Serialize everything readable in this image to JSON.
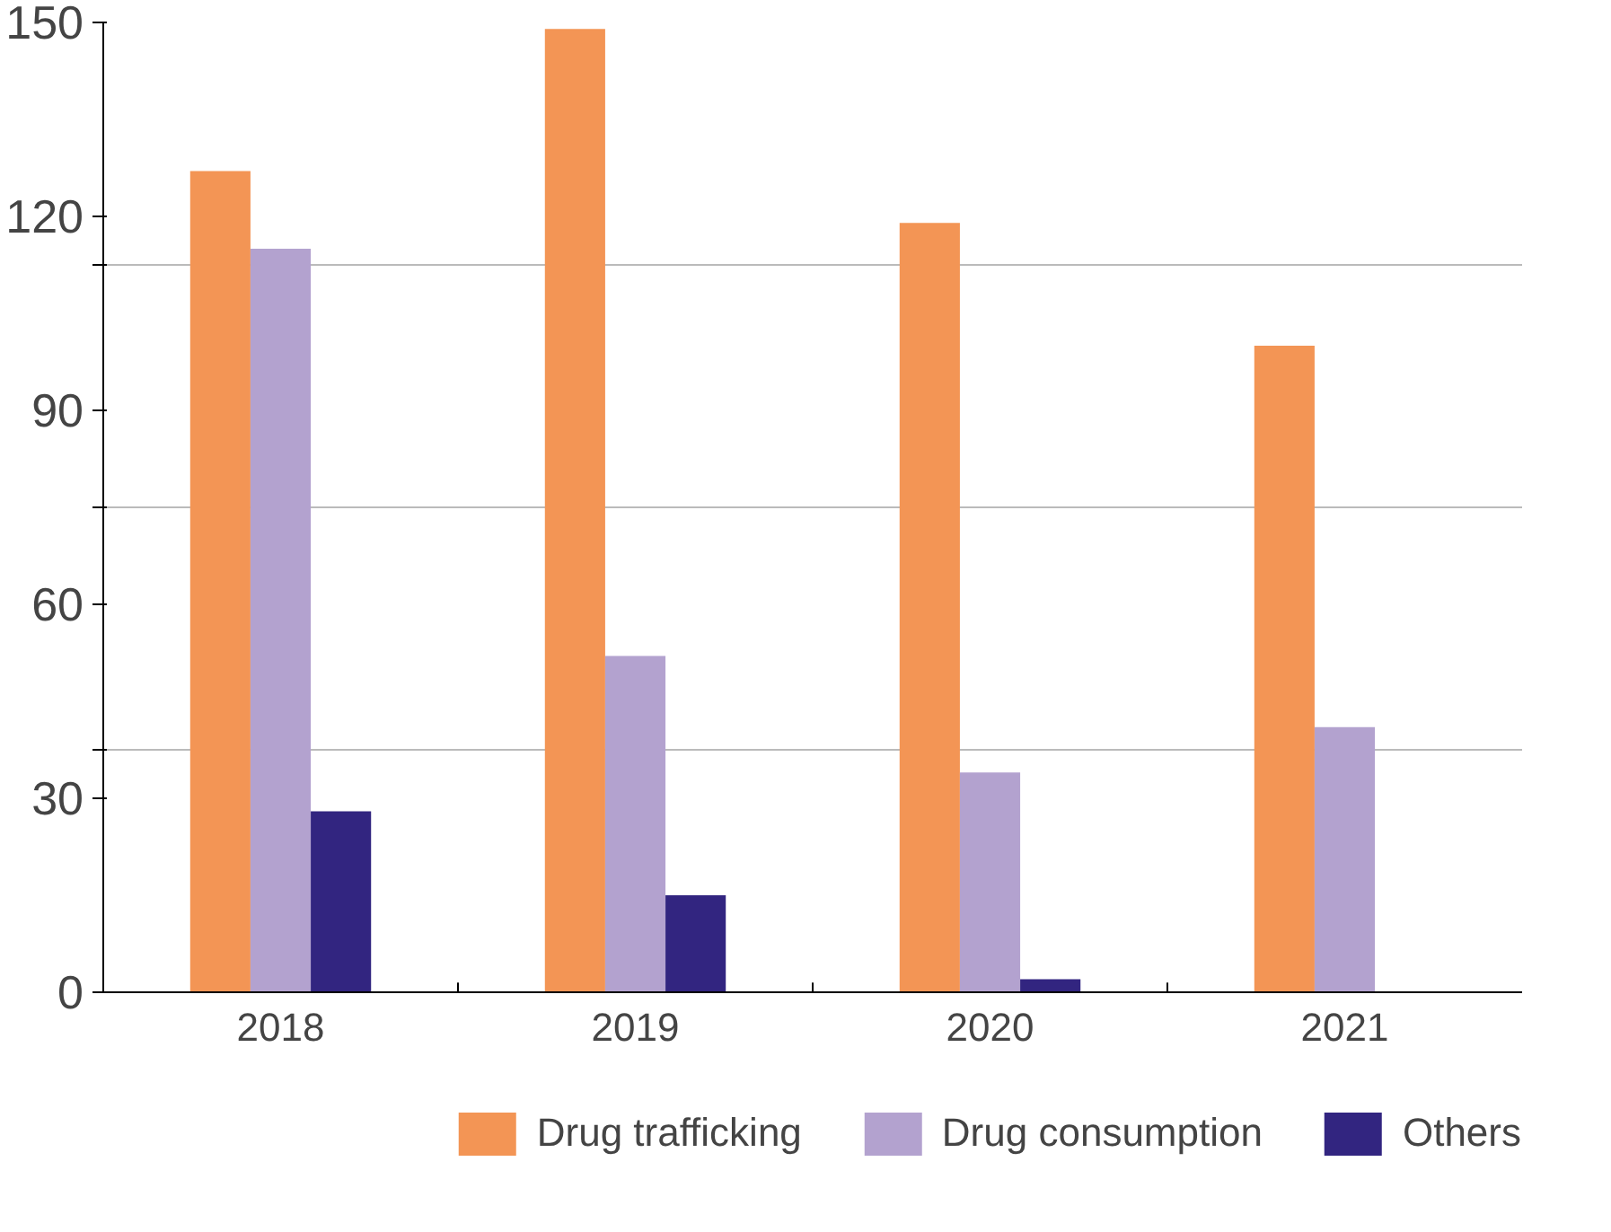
{
  "chart_data": {
    "type": "bar",
    "categories": [
      "2018",
      "2019",
      "2020",
      "2021"
    ],
    "series": [
      {
        "name": "Drug trafficking",
        "color": "#f39555",
        "values": [
          127,
          149,
          119,
          100
        ]
      },
      {
        "name": "Drug consumption",
        "color": "#b3a2cf",
        "values": [
          115,
          52,
          34,
          41
        ]
      },
      {
        "name": "Others",
        "color": "#322580",
        "values": [
          28,
          15,
          2,
          null
        ]
      }
    ],
    "ylim": [
      0,
      150
    ],
    "yticks": [
      0,
      30,
      {
        "value": 37.5,
        "label": null
      },
      60,
      {
        "value": 75,
        "label": null
      },
      90,
      {
        "value": 112.5,
        "label": null
      },
      120,
      150
    ],
    "grid": "y",
    "legend": "bottom"
  }
}
